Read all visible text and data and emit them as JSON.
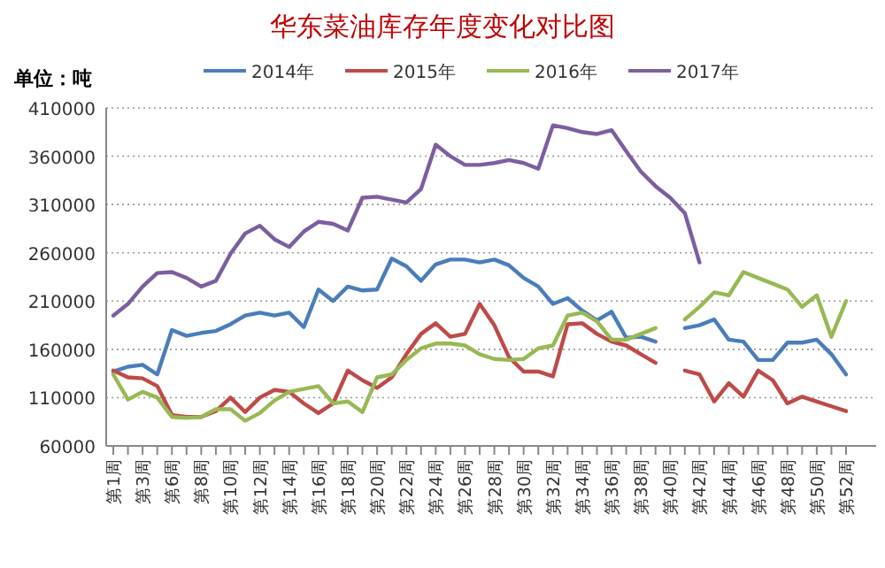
{
  "chart_data": {
    "type": "line",
    "title": "华东菜油库存年度变化对比图",
    "ylabel": "单位：吨",
    "categories": [
      "第1周",
      null,
      "第3周",
      null,
      "第6周",
      null,
      "第8周",
      null,
      "第10周",
      null,
      "第12周",
      null,
      "第14周",
      null,
      "第16周",
      null,
      "第18周",
      null,
      "第20周",
      null,
      "第22周",
      null,
      "第24周",
      null,
      "第26周",
      null,
      "第28周",
      null,
      "第30周",
      null,
      "第32周",
      null,
      "第34周",
      null,
      "第36周",
      null,
      "第38周",
      null,
      "第40周",
      null,
      "第42周",
      null,
      "第44周",
      null,
      "第46周",
      null,
      "第48周",
      null,
      "第50周",
      null,
      "第52周"
    ],
    "series": [
      {
        "name": "2014年",
        "color": "#4a7ebb",
        "values": [
          137000,
          142000,
          144000,
          134000,
          180000,
          174000,
          177000,
          179000,
          186000,
          195000,
          198000,
          195000,
          198000,
          183000,
          222000,
          210000,
          225000,
          221000,
          222000,
          254000,
          246000,
          231000,
          248000,
          253000,
          253000,
          250000,
          253000,
          247000,
          234000,
          225000,
          207000,
          213000,
          200000,
          190000,
          199000,
          172000,
          173000,
          168000,
          null,
          182000,
          185000,
          191000,
          170000,
          168000,
          149000,
          149000,
          167000,
          167000,
          170000,
          155000,
          134000
        ]
      },
      {
        "name": "2015年",
        "color": "#be4b48",
        "values": [
          138000,
          131000,
          130000,
          122000,
          92000,
          90000,
          90000,
          96000,
          110000,
          95000,
          110000,
          118000,
          116000,
          104000,
          94000,
          104000,
          138000,
          128000,
          120000,
          131000,
          155000,
          176000,
          187000,
          173000,
          176000,
          207000,
          185000,
          152000,
          137000,
          137000,
          132000,
          186000,
          187000,
          176000,
          168000,
          164000,
          155000,
          146000,
          null,
          138000,
          134000,
          106000,
          125000,
          111000,
          138000,
          128000,
          104000,
          111000,
          106000,
          101000,
          96000
        ]
      },
      {
        "name": "2016年",
        "color": "#98b954",
        "values": [
          134000,
          108000,
          116000,
          110000,
          90000,
          89000,
          90000,
          98000,
          98000,
          86000,
          94000,
          107000,
          116000,
          119000,
          122000,
          104000,
          106000,
          95000,
          131000,
          134000,
          149000,
          161000,
          166000,
          166000,
          164000,
          155000,
          150000,
          149000,
          150000,
          161000,
          164000,
          195000,
          198000,
          189000,
          170000,
          170000,
          176000,
          182000,
          null,
          191000,
          204000,
          219000,
          216000,
          240000,
          234000,
          228000,
          222000,
          204000,
          216000,
          173000,
          210000
        ]
      },
      {
        "name": "2017年",
        "color": "#7d5fa0",
        "values": [
          195000,
          207000,
          225000,
          239000,
          240000,
          234000,
          225000,
          231000,
          259000,
          280000,
          288000,
          274000,
          266000,
          282000,
          292000,
          290000,
          283000,
          317000,
          318000,
          315000,
          312000,
          326000,
          372000,
          360000,
          351000,
          351000,
          353000,
          356000,
          353000,
          347000,
          392000,
          389000,
          385000,
          383000,
          387000,
          365000,
          344000,
          329000,
          317000,
          301000,
          250000,
          null,
          null,
          null,
          null,
          null,
          null,
          null,
          null,
          null,
          null
        ]
      }
    ],
    "ylim": [
      60000,
      410000
    ],
    "yticks": [
      60000,
      110000,
      160000,
      210000,
      260000,
      310000,
      360000,
      410000
    ],
    "grid": "y",
    "legend": "top",
    "line_style": "solid",
    "marker": "none"
  }
}
